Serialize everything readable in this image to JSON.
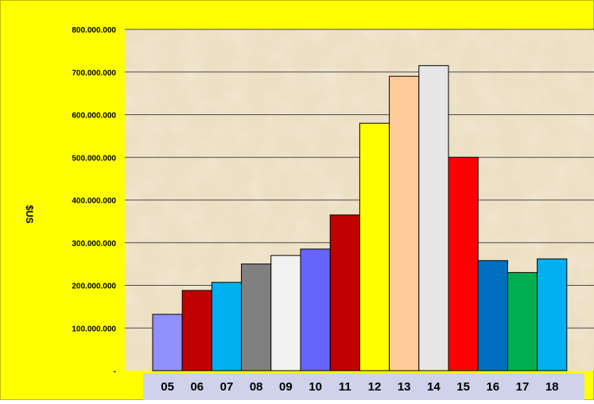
{
  "chart_data": {
    "type": "bar",
    "title": "",
    "xlabel": "",
    "ylabel": "$US",
    "ylim": [
      0,
      800000000
    ],
    "grid": true,
    "legend": "none",
    "y_ticks": [
      "-",
      "100.000.000",
      "200.000.000",
      "300.000.000",
      "400.000.000",
      "500.000.000",
      "600.000.000",
      "700.000.000",
      "800.000.000"
    ],
    "categories": [
      "05",
      "06",
      "07",
      "08",
      "09",
      "10",
      "11",
      "12",
      "13",
      "14",
      "15",
      "16",
      "17",
      "18"
    ],
    "values": [
      132000000,
      188000000,
      207000000,
      250000000,
      270000000,
      285000000,
      365000000,
      580000000,
      690000000,
      715000000,
      500000000,
      258000000,
      230000000,
      262000000
    ],
    "bar_colors": [
      "#9090ff",
      "#c00000",
      "#00b0f0",
      "#808080",
      "#f2f2f2",
      "#6666ff",
      "#c00000",
      "#ffff00",
      "#ffcc99",
      "#e6e6e6",
      "#ff0000",
      "#0070c0",
      "#00b050",
      "#00b0f0"
    ]
  },
  "colors": {
    "background": "#ffff00",
    "plot_area": "#ecdfc4",
    "category_band": "#cfd2ea"
  }
}
